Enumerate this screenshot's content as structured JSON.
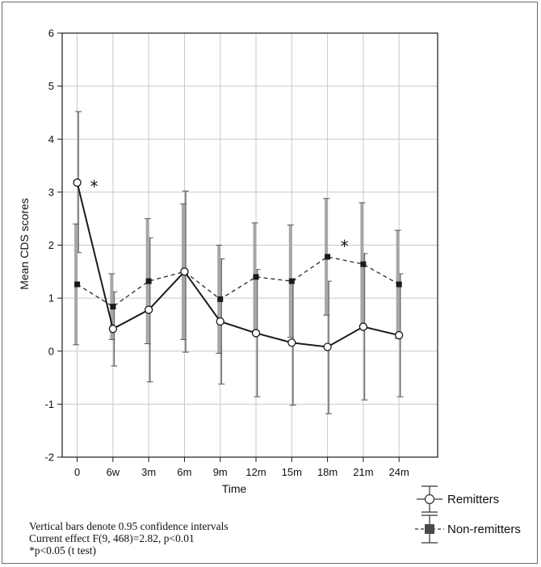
{
  "chart_data": {
    "type": "line",
    "ylabel": "Mean CDS scores",
    "xlabel": "Time",
    "categories": [
      "0",
      "6w",
      "3m",
      "6m",
      "9m",
      "12m",
      "15m",
      "18m",
      "21m",
      "24m"
    ],
    "ylim": [
      -2,
      6
    ],
    "yticks": [
      "-2",
      "-1",
      "0",
      "1",
      "2",
      "3",
      "4",
      "5",
      "6"
    ],
    "grid": true,
    "series": [
      {
        "name": "Remitters",
        "line": "solid",
        "marker": "open-circle",
        "values": [
          3.18,
          0.42,
          0.78,
          1.5,
          0.56,
          0.34,
          0.16,
          0.08,
          0.46,
          0.3
        ],
        "ci_upper": [
          4.52,
          1.12,
          2.14,
          3.02,
          1.74,
          1.54,
          1.34,
          1.32,
          1.84,
          1.46
        ],
        "ci_lower": [
          1.86,
          -0.28,
          -0.58,
          -0.02,
          -0.62,
          -0.86,
          -1.02,
          -1.18,
          -0.92,
          -0.86
        ]
      },
      {
        "name": "Non-remitters",
        "line": "dashed",
        "marker": "filled-square",
        "values": [
          1.26,
          0.84,
          1.32,
          1.5,
          0.98,
          1.4,
          1.32,
          1.78,
          1.64,
          1.26
        ],
        "ci_upper": [
          2.4,
          1.46,
          2.5,
          2.78,
          2.0,
          2.42,
          2.38,
          2.88,
          2.8,
          2.28
        ],
        "ci_lower": [
          0.12,
          0.22,
          0.14,
          0.22,
          -0.04,
          0.38,
          0.26,
          0.68,
          0.48,
          0.24
        ]
      }
    ],
    "annotations": [
      {
        "text": "*",
        "category": "0",
        "y": 3.18
      },
      {
        "text": "*",
        "category": "18m",
        "y": 2.05
      }
    ],
    "legend_position": "bottom-right",
    "notes": [
      "Vertical bars denote 0.95 confidence intervals",
      "Current effect F(9, 468)=2.82, p<0.01",
      "*p<0.05 (t test)"
    ]
  }
}
